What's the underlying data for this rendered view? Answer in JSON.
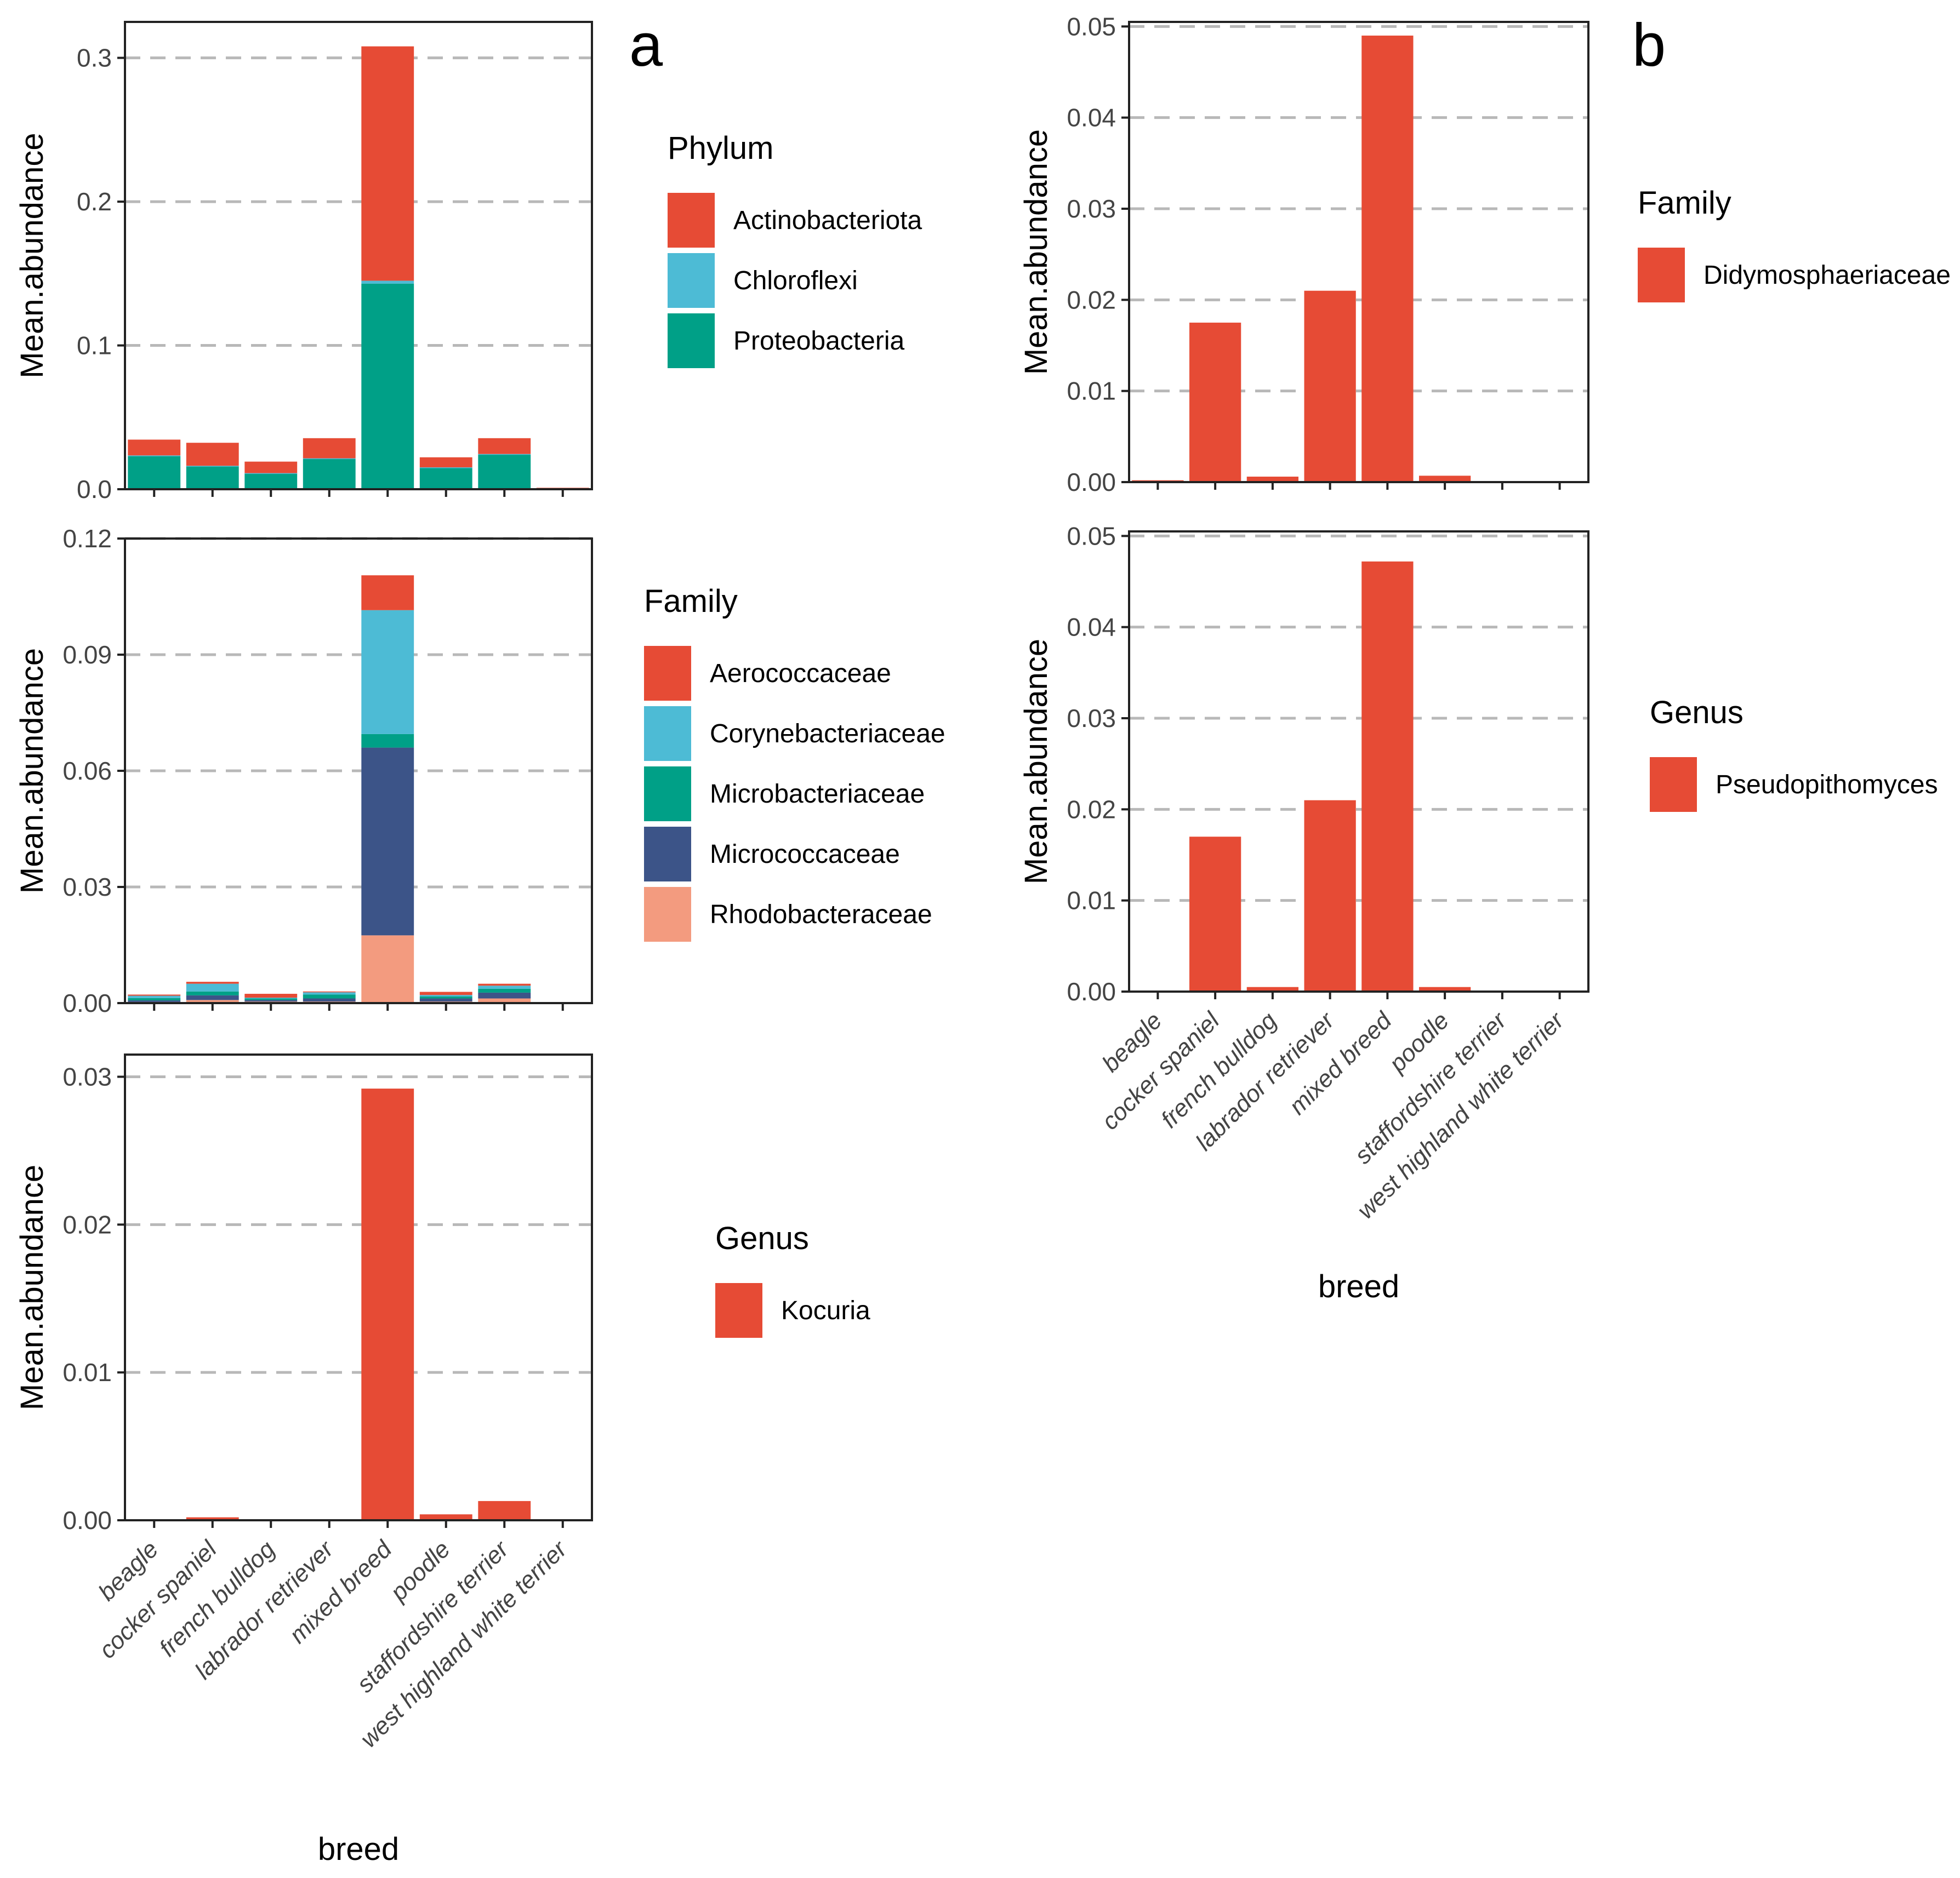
{
  "breeds": [
    "beagle",
    "cocker spaniel",
    "french bulldog",
    "labrador retriever",
    "mixed breed",
    "poodle",
    "staffordshire terrier",
    "west highland white terrier"
  ],
  "panel_labels": [
    "a",
    "b"
  ],
  "colors": {
    "red": "#E64B35",
    "lightblue": "#4DBBD5",
    "teal": "#00A087",
    "navy": "#3C5488",
    "salmon": "#F39B7F"
  },
  "chart_data": [
    {
      "id": "a1",
      "type": "bar",
      "stacked": true,
      "ylabel": "Mean.abundance",
      "xlabel": "",
      "ylim": [
        0,
        0.325
      ],
      "yticks": [
        0.0,
        0.1,
        0.2,
        0.3
      ],
      "tick_labels": [
        "0.0",
        "0.1",
        "0.2",
        "0.3"
      ],
      "grid": true,
      "legend_title": "Phylum",
      "series": [
        {
          "name": "Proteobacteria",
          "color": "#00A087",
          "values": [
            0.023,
            0.016,
            0.011,
            0.021,
            0.143,
            0.015,
            0.024,
            0.0005
          ]
        },
        {
          "name": "Chloroflexi",
          "color": "#4DBBD5",
          "values": [
            0.0005,
            0.0003,
            0.0002,
            0.0005,
            0.002,
            0.0002,
            0.0005,
            0.0
          ]
        },
        {
          "name": "Actinobacteriota",
          "color": "#E64B35",
          "values": [
            0.011,
            0.016,
            0.008,
            0.014,
            0.163,
            0.007,
            0.011,
            0.0005
          ]
        }
      ],
      "legend_order": [
        "Actinobacteriota",
        "Chloroflexi",
        "Proteobacteria"
      ]
    },
    {
      "id": "a2",
      "type": "bar",
      "stacked": true,
      "ylabel": "Mean.abundance",
      "xlabel": "",
      "ylim": [
        0,
        0.12
      ],
      "yticks": [
        0.0,
        0.03,
        0.06,
        0.09,
        0.12
      ],
      "tick_labels": [
        "0.00",
        "0.03",
        "0.06",
        "0.09",
        "0.12"
      ],
      "grid": true,
      "legend_title": "Family",
      "series": [
        {
          "name": "Rhodobacteraceae",
          "color": "#F39B7F",
          "values": [
            0.0003,
            0.0008,
            0.0004,
            0.0004,
            0.0175,
            0.0004,
            0.0012,
            0.0
          ]
        },
        {
          "name": "Micrococcaceae",
          "color": "#3C5488",
          "values": [
            0.0004,
            0.0012,
            0.0004,
            0.0008,
            0.0485,
            0.0008,
            0.0015,
            0.0
          ]
        },
        {
          "name": "Microbacteriaceae",
          "color": "#00A087",
          "values": [
            0.0006,
            0.001,
            0.0004,
            0.001,
            0.0035,
            0.0005,
            0.001,
            0.0
          ]
        },
        {
          "name": "Corynebacteriaceae",
          "color": "#4DBBD5",
          "values": [
            0.0006,
            0.002,
            0.0002,
            0.0006,
            0.032,
            0.0004,
            0.0008,
            0.0
          ]
        },
        {
          "name": "Aerococcaceae",
          "color": "#E64B35",
          "values": [
            0.0003,
            0.0005,
            0.001,
            0.0002,
            0.009,
            0.0008,
            0.0005,
            0.0
          ]
        }
      ],
      "legend_order": [
        "Aerococcaceae",
        "Corynebacteriaceae",
        "Microbacteriaceae",
        "Micrococcaceae",
        "Rhodobacteraceae"
      ]
    },
    {
      "id": "a3",
      "type": "bar",
      "ylabel": "Mean.abundance",
      "xlabel": "breed",
      "ylim": [
        0,
        0.0315
      ],
      "yticks": [
        0.0,
        0.01,
        0.02,
        0.03
      ],
      "tick_labels": [
        "0.00",
        "0.01",
        "0.02",
        "0.03"
      ],
      "grid": true,
      "legend_title": "Genus",
      "series": [
        {
          "name": "Kocuria",
          "color": "#E64B35",
          "values": [
            0.0,
            0.0002,
            0.0,
            0.0,
            0.0292,
            0.0004,
            0.0013,
            0.0
          ]
        }
      ],
      "legend_order": [
        "Kocuria"
      ]
    },
    {
      "id": "b1",
      "type": "bar",
      "ylabel": "Mean.abundance",
      "xlabel": "",
      "ylim": [
        0,
        0.0505
      ],
      "yticks": [
        0.0,
        0.01,
        0.02,
        0.03,
        0.04,
        0.05
      ],
      "tick_labels": [
        "0.00",
        "0.01",
        "0.02",
        "0.03",
        "0.04",
        "0.05"
      ],
      "grid": true,
      "legend_title": "Family",
      "series": [
        {
          "name": "Didymosphaeriaceae",
          "color": "#E64B35",
          "values": [
            0.0002,
            0.0175,
            0.0006,
            0.021,
            0.049,
            0.0007,
            0.0,
            0.0
          ]
        }
      ],
      "legend_order": [
        "Didymosphaeriaceae"
      ]
    },
    {
      "id": "b2",
      "type": "bar",
      "ylabel": "Mean.abundance",
      "xlabel": "breed",
      "ylim": [
        0,
        0.0505
      ],
      "yticks": [
        0.0,
        0.01,
        0.02,
        0.03,
        0.04,
        0.05
      ],
      "tick_labels": [
        "0.00",
        "0.01",
        "0.02",
        "0.03",
        "0.04",
        "0.05"
      ],
      "grid": true,
      "legend_title": "Genus",
      "series": [
        {
          "name": "Pseudopithomyces",
          "color": "#E64B35",
          "values": [
            0.0,
            0.017,
            0.0005,
            0.021,
            0.0472,
            0.0005,
            0.0,
            0.0
          ]
        }
      ],
      "legend_order": [
        "Pseudopithomyces"
      ]
    }
  ]
}
